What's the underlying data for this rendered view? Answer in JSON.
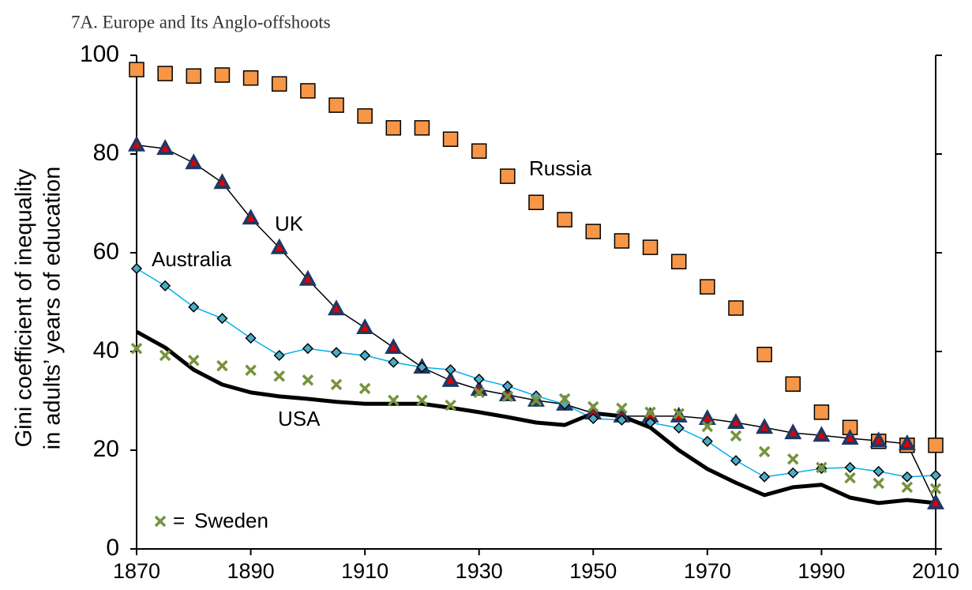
{
  "chart_data": {
    "type": "line",
    "title": "7A. Europe and Its Anglo-offshoots",
    "ylabel": [
      "Gini coefficient of inequality",
      "in adults’ years of education"
    ],
    "x": [
      1870,
      1875,
      1880,
      1885,
      1890,
      1895,
      1900,
      1905,
      1910,
      1915,
      1920,
      1925,
      1930,
      1935,
      1940,
      1945,
      1950,
      1955,
      1960,
      1965,
      1970,
      1975,
      1980,
      1985,
      1990,
      1995,
      2000,
      2005,
      2010
    ],
    "xlim": [
      1870,
      2010
    ],
    "xticks": [
      1870,
      1890,
      1910,
      1930,
      1950,
      1970,
      1990,
      2010
    ],
    "ylim": [
      0,
      100
    ],
    "yticks": [
      0,
      20,
      40,
      60,
      80,
      100
    ],
    "legend_separator": "=",
    "series": [
      {
        "name": "Russia",
        "color": "#f79646",
        "marker": "square",
        "line": "none",
        "values": [
          97.1,
          96.3,
          95.8,
          96,
          95.4,
          94.2,
          92.8,
          89.9,
          87.7,
          85.3,
          85.3,
          83,
          80.6,
          75.5,
          70.2,
          66.7,
          64.3,
          62.4,
          61.1,
          58.2,
          53.1,
          48.8,
          39.4,
          33.4,
          27.7,
          24.6,
          21.8,
          21,
          21
        ]
      },
      {
        "name": "UK",
        "color": "#1f3864",
        "marker": "triangle",
        "line": "thin",
        "values": [
          81.8,
          81.1,
          78.2,
          74.2,
          67,
          61,
          54.6,
          48.6,
          44.8,
          40.8,
          36.8,
          34.1,
          32.3,
          31.2,
          30.1,
          29.3,
          27.5,
          26.9,
          26.9,
          26.9,
          26.4,
          25.6,
          24.6,
          23.5,
          23,
          22.4,
          21.9,
          21.3,
          9.3
        ]
      },
      {
        "name": "Australia",
        "color": "#4bacc6",
        "marker": "diamond",
        "line": "thin",
        "values": [
          56.8,
          53.3,
          49,
          46.7,
          42.7,
          39.2,
          40.6,
          39.8,
          39.2,
          37.8,
          36.8,
          36.3,
          34.4,
          33,
          31,
          29.3,
          26.4,
          26.1,
          25.6,
          24.5,
          21.8,
          17.9,
          14.6,
          15.4,
          16.3,
          16.5,
          15.7,
          14.6,
          14.9
        ]
      },
      {
        "name": "USA",
        "color": "#000000",
        "marker": "none",
        "line": "thick",
        "values": [
          44,
          40.8,
          36.3,
          33.3,
          31.7,
          30.9,
          30.4,
          29.8,
          29.4,
          29.4,
          29.4,
          28.6,
          27.7,
          26.7,
          25.6,
          25.1,
          27.5,
          26.9,
          24.6,
          20,
          16.2,
          13.4,
          10.9,
          12.5,
          13,
          10.4,
          9.3,
          9.9,
          9.3
        ]
      },
      {
        "name": "Sweden",
        "color": "#77933c",
        "marker": "x",
        "line": "none",
        "values": [
          40.6,
          39.2,
          38.2,
          37.1,
          36.2,
          35,
          34.2,
          33.3,
          32.5,
          30.1,
          30.1,
          29.1,
          31.7,
          30.9,
          30.1,
          30.4,
          28.8,
          28.5,
          27.7,
          27.4,
          24.8,
          22.9,
          19.7,
          18.2,
          16.5,
          14.4,
          13.3,
          12.5,
          12.2
        ]
      }
    ]
  }
}
